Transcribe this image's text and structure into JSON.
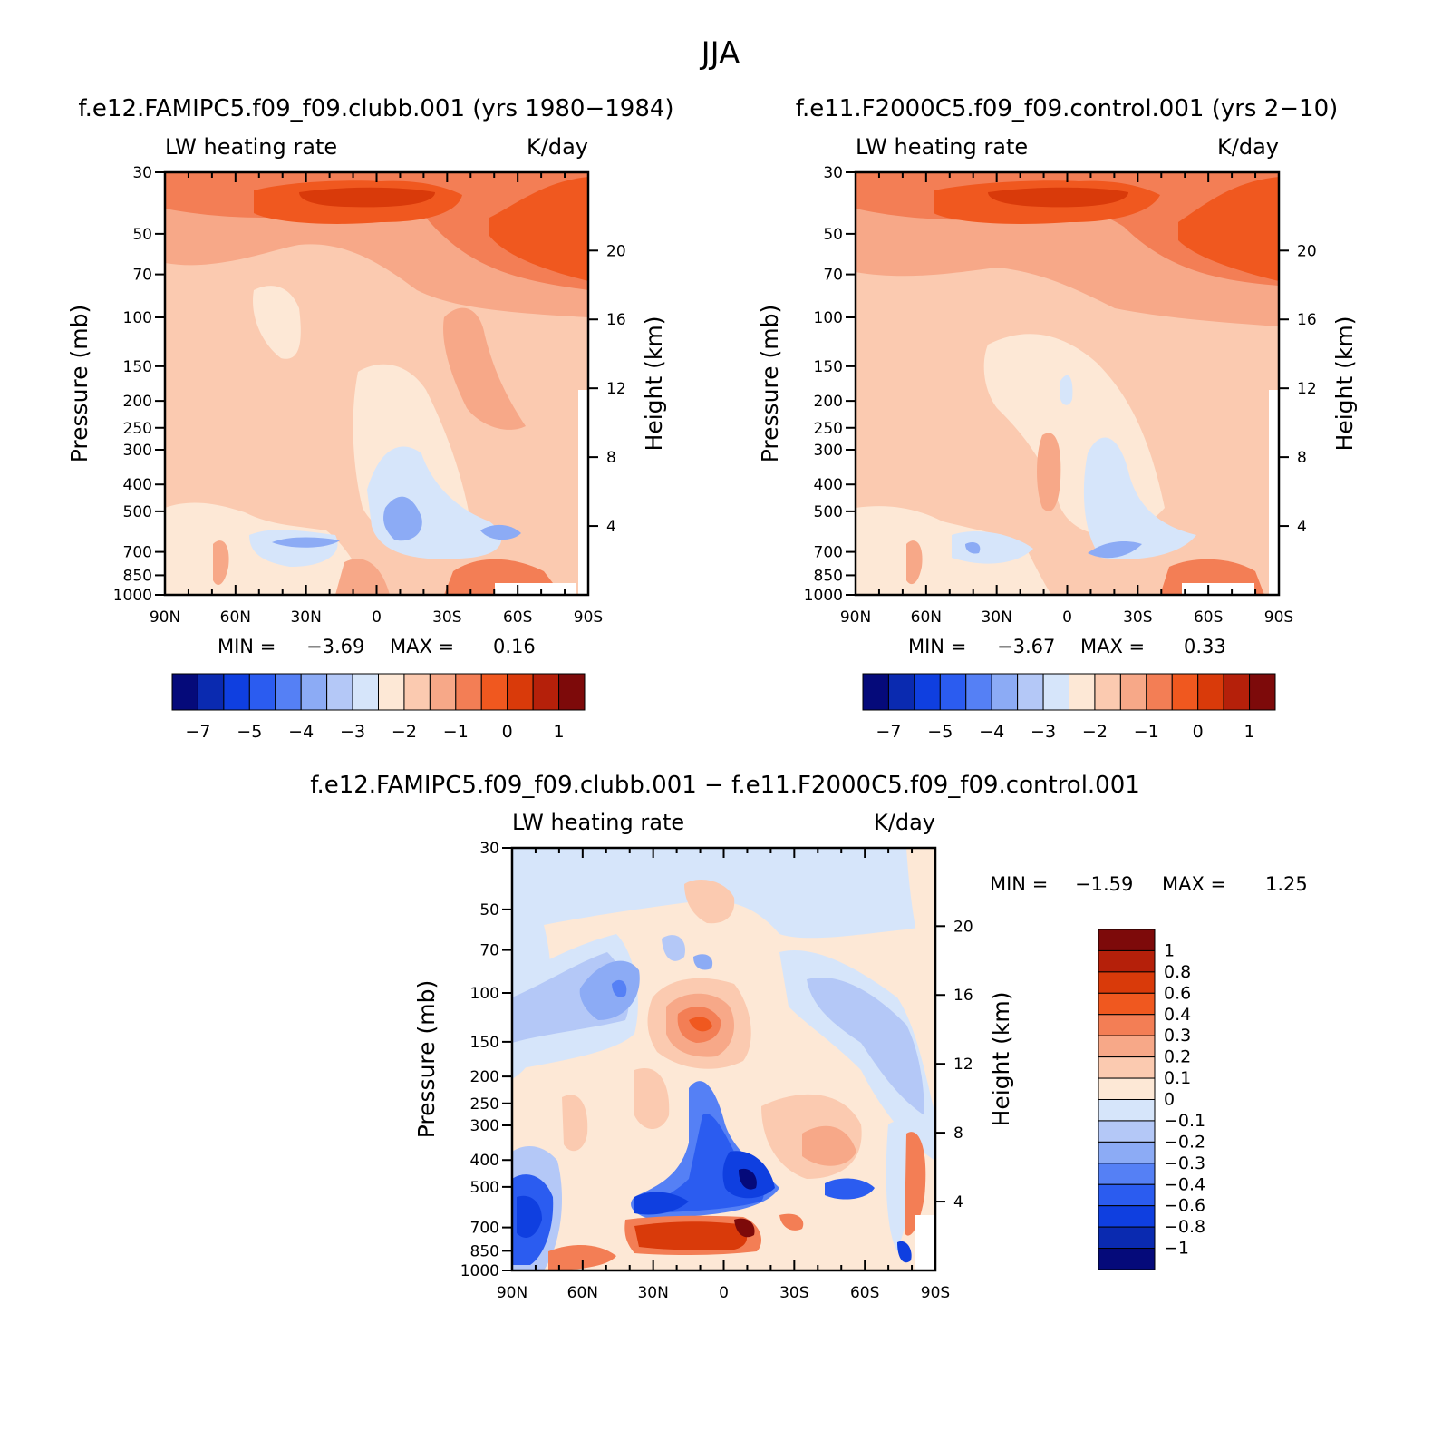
{
  "figure": {
    "title": "JJA"
  },
  "chart_data": [
    {
      "type": "heatmap",
      "title": "f.e12.FAMIPC5.f09_f09.clubb.001 (yrs 1980−1984)",
      "variable_label": "LW heating rate",
      "units": "K/day",
      "ylabel": "Pressure (mb)",
      "y2label": "Height (km)",
      "x_ticks": [
        "90N",
        "60N",
        "30N",
        "0",
        "30S",
        "60S",
        "90S"
      ],
      "x_values": [
        90,
        60,
        30,
        0,
        -30,
        -60,
        -90
      ],
      "y_ticks": [
        "30",
        "50",
        "70",
        "100",
        "150",
        "200",
        "250",
        "300",
        "400",
        "500",
        "700",
        "850",
        "1000"
      ],
      "y_values": [
        30,
        50,
        70,
        100,
        150,
        200,
        250,
        300,
        400,
        500,
        700,
        850,
        1000
      ],
      "ylim": [
        1000,
        30
      ],
      "y_scale": "log",
      "y2_ticks": [
        "20",
        "16",
        "12",
        "8",
        "4"
      ],
      "y2_values": [
        20,
        16,
        12,
        8,
        4
      ],
      "min_label": "MIN =",
      "min": "−3.69",
      "max_label": "MAX =",
      "max": "0.16",
      "colorbar": {
        "orientation": "horizontal",
        "labels": [
          "−7",
          "−5",
          "−4",
          "−3",
          "−2",
          "−1",
          "0",
          "1"
        ]
      }
    },
    {
      "type": "heatmap",
      "title": "f.e11.F2000C5.f09_f09.control.001 (yrs 2−10)",
      "variable_label": "LW heating rate",
      "units": "K/day",
      "ylabel": "Pressure (mb)",
      "y2label": "Height (km)",
      "x_ticks": [
        "90N",
        "60N",
        "30N",
        "0",
        "30S",
        "60S",
        "90S"
      ],
      "x_values": [
        90,
        60,
        30,
        0,
        -30,
        -60,
        -90
      ],
      "y_ticks": [
        "30",
        "50",
        "70",
        "100",
        "150",
        "200",
        "250",
        "300",
        "400",
        "500",
        "700",
        "850",
        "1000"
      ],
      "y_values": [
        30,
        50,
        70,
        100,
        150,
        200,
        250,
        300,
        400,
        500,
        700,
        850,
        1000
      ],
      "ylim": [
        1000,
        30
      ],
      "y_scale": "log",
      "y2_ticks": [
        "20",
        "16",
        "12",
        "8",
        "4"
      ],
      "y2_values": [
        20,
        16,
        12,
        8,
        4
      ],
      "min_label": "MIN =",
      "min": "−3.67",
      "max_label": "MAX =",
      "max": "0.33",
      "colorbar": {
        "orientation": "horizontal",
        "labels": [
          "−7",
          "−5",
          "−4",
          "−3",
          "−2",
          "−1",
          "0",
          "1"
        ]
      }
    },
    {
      "type": "heatmap",
      "title": "f.e12.FAMIPC5.f09_f09.clubb.001 − f.e11.F2000C5.f09_f09.control.001",
      "variable_label": "LW heating rate",
      "units": "K/day",
      "ylabel": "Pressure (mb)",
      "y2label": "Height (km)",
      "x_ticks": [
        "90N",
        "60N",
        "30N",
        "0",
        "30S",
        "60S",
        "90S"
      ],
      "x_values": [
        90,
        60,
        30,
        0,
        -30,
        -60,
        -90
      ],
      "y_ticks": [
        "30",
        "50",
        "70",
        "100",
        "150",
        "200",
        "250",
        "300",
        "400",
        "500",
        "700",
        "850",
        "1000"
      ],
      "y_values": [
        30,
        50,
        70,
        100,
        150,
        200,
        250,
        300,
        400,
        500,
        700,
        850,
        1000
      ],
      "ylim": [
        1000,
        30
      ],
      "y_scale": "log",
      "y2_ticks": [
        "20",
        "16",
        "12",
        "8",
        "4"
      ],
      "y2_values": [
        20,
        16,
        12,
        8,
        4
      ],
      "min_label": "MIN =",
      "min": "−1.59",
      "max_label": "MAX =",
      "max": "1.25",
      "colorbar": {
        "orientation": "vertical",
        "labels": [
          "1",
          "0.8",
          "0.6",
          "0.4",
          "0.3",
          "0.2",
          "0.1",
          "0",
          "−0.1",
          "−0.2",
          "−0.3",
          "−0.4",
          "−0.6",
          "−0.8",
          "−1"
        ]
      }
    }
  ],
  "colors": {
    "abs_scale": [
      "#050a7a",
      "#0a2ab0",
      "#0f3fe0",
      "#2b5cf0",
      "#5580f5",
      "#8cabf5",
      "#b4c8f7",
      "#d6e5fa",
      "#fde8d6",
      "#fbcab0",
      "#f7a888",
      "#f37e55",
      "#f0581f",
      "#d93a0a",
      "#b5200a",
      "#7d0a0a"
    ],
    "diff_scale": [
      "#7d0a0a",
      "#b5200a",
      "#d93a0a",
      "#f0581f",
      "#f37e55",
      "#f7a888",
      "#fbcab0",
      "#fde8d6",
      "#d6e5fa",
      "#b4c8f7",
      "#8cabf5",
      "#5580f5",
      "#2b5cf0",
      "#0f3fe0",
      "#0a2ab0",
      "#050a7a"
    ]
  }
}
